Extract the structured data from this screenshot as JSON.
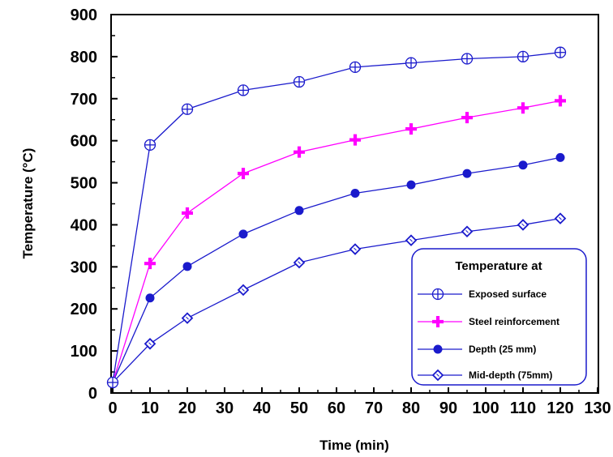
{
  "chart_data": {
    "type": "line",
    "xlabel": "Time (min)",
    "ylabel": "Temperature  (°C)",
    "xlim": [
      0,
      130
    ],
    "ylim": [
      0,
      900
    ],
    "xticks": [
      "0",
      "10",
      "20",
      "30",
      "40",
      "50",
      "60",
      "70",
      "80",
      "90",
      "100",
      "110",
      "120",
      "130"
    ],
    "yticks": [
      "0",
      "100",
      "200",
      "300",
      "400",
      "500",
      "600",
      "700",
      "800",
      "900"
    ],
    "grid": false,
    "legend": {
      "title": "Temperature at",
      "placement": "bottom-right"
    },
    "series": [
      {
        "name": "Exposed surface",
        "color": "#1a1acc",
        "marker": "circle-plus",
        "x": [
          0,
          10,
          20,
          35,
          50,
          65,
          80,
          95,
          110,
          120
        ],
        "y": [
          25,
          590,
          675,
          720,
          740,
          775,
          785,
          795,
          800,
          810
        ]
      },
      {
        "name": "Steel reinforcement",
        "color": "#ff00ff",
        "marker": "plus",
        "x": [
          0,
          10,
          20,
          35,
          50,
          65,
          80,
          95,
          110,
          120
        ],
        "y": [
          25,
          308,
          428,
          522,
          573,
          602,
          628,
          655,
          678,
          695
        ]
      },
      {
        "name": "Depth  (25 mm)",
        "color": "#1a1acc",
        "marker": "filled-circle",
        "x": [
          0,
          10,
          20,
          35,
          50,
          65,
          80,
          95,
          110,
          120
        ],
        "y": [
          25,
          226,
          301,
          378,
          434,
          475,
          495,
          522,
          542,
          560
        ]
      },
      {
        "name": "Mid-depth  (75mm)",
        "color": "#1a1acc",
        "marker": "diamond",
        "x": [
          0,
          10,
          20,
          35,
          50,
          65,
          80,
          95,
          110,
          120
        ],
        "y": [
          25,
          117,
          178,
          245,
          310,
          342,
          363,
          384,
          400,
          415
        ]
      }
    ]
  }
}
